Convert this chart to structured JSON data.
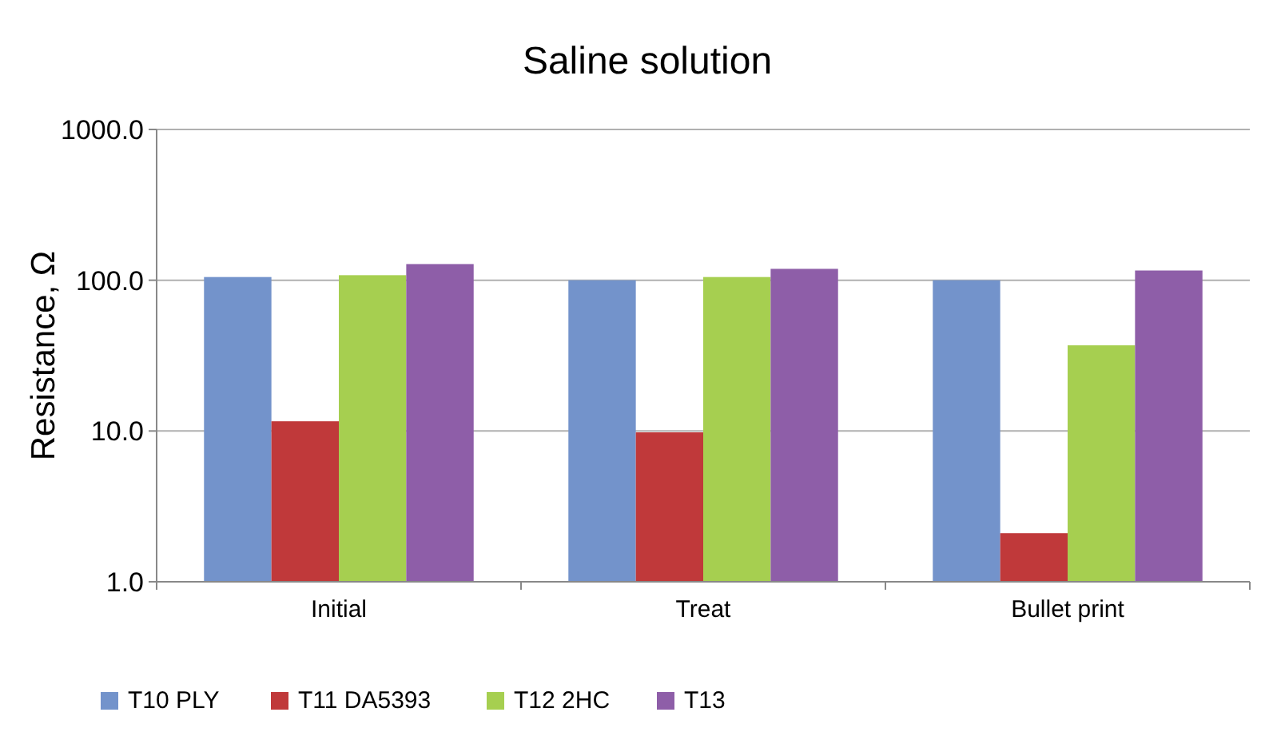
{
  "chart_data": {
    "type": "bar",
    "title": "Saline solution",
    "ylabel": "Resistance, Ω",
    "categories": [
      "Initial",
      "Treat",
      "Bullet print"
    ],
    "series": [
      {
        "name": "T10 PLY",
        "color": "#7393cb",
        "values": [
          105,
          100,
          100
        ]
      },
      {
        "name": "T11 DA5393",
        "color": "#c0393a",
        "values": [
          11.6,
          9.8,
          2.1
        ]
      },
      {
        "name": "T12 2HC",
        "color": "#a6cf50",
        "values": [
          108,
          105,
          37
        ]
      },
      {
        "name": "T13",
        "color": "#8e5ea8",
        "values": [
          128,
          119,
          116
        ]
      }
    ],
    "log": true,
    "ylim": [
      1,
      1000
    ],
    "yticks": [
      {
        "value": 1,
        "label": "1.0"
      },
      {
        "value": 10,
        "label": "10.0"
      },
      {
        "value": 100,
        "label": "100.0"
      },
      {
        "value": 1000,
        "label": "1000.0"
      }
    ],
    "grid": "y",
    "legend": "bottom"
  }
}
